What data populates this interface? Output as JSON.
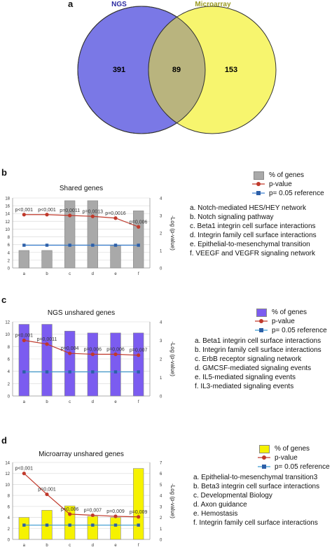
{
  "panel_a": {
    "letter": "a",
    "left_label": "NGS",
    "right_label": "Microarray",
    "left_only": "391",
    "overlap": "89",
    "right_only": "153",
    "left_color": "#7a78e6",
    "right_color": "#f7f56e",
    "overlap_color": "#b9b47e"
  },
  "panels": [
    {
      "letter": "b",
      "pathways": [
        "a.   Notch-mediated HES/HEY network",
        "b.   Notch signaling pathway",
        "c.   Beta1 integrin cell surface interactions",
        "d.   Integrin family cell surface interactions",
        "e.   Epithelial-to-mesenchymal transition",
        "f.   VEEGF and VEGFR signaling network"
      ],
      "legend": [
        "% of genes",
        "p-value",
        "p= 0.05 reference"
      ]
    },
    {
      "letter": "c",
      "pathways": [
        "a.   Beta1 integrin cell surface interactions",
        "b.   Integrin family cell surface interactions",
        "c.   ErbB receptor signaling network",
        "d.   GMCSF-mediated signaling events",
        "e.   IL5-mediated signaling events",
        "f.    IL3-mediated signaling events"
      ],
      "legend": [
        "% of genes",
        "p-value",
        "p= 0.05 reference"
      ]
    },
    {
      "letter": "d",
      "pathways": [
        "a.   Epithelial-to-mesenchymal transition3",
        "b.   Beta3 integrin cell surface interactions",
        "c.   Developmental Biology",
        "d.   Axon guidance",
        "e.   Hemostasis",
        "f.    Integrin family cell surface interactions"
      ],
      "legend": [
        "% of genes",
        "p-value",
        "p= 0.05 reference"
      ]
    }
  ],
  "chart_data": [
    {
      "type": "bar",
      "title": "Shared genes",
      "categories": [
        "a",
        "b",
        "c",
        "d",
        "e",
        "f"
      ],
      "ylim": [
        0,
        18
      ],
      "yticks": [
        0,
        2,
        4,
        6,
        8,
        10,
        12,
        14,
        16,
        18
      ],
      "y2lim": [
        0,
        4
      ],
      "y2ticks": [
        0,
        1,
        2,
        3,
        4
      ],
      "y2label": "-Log (p-value)",
      "bar_values": [
        4.5,
        4.5,
        17.3,
        17.3,
        5.8,
        14.7
      ],
      "pvalue_line": [
        3.05,
        3.05,
        3.0,
        2.95,
        2.85,
        2.35
      ],
      "reference_line": [
        1.3,
        1.3,
        1.3,
        1.3,
        1.3,
        1.3
      ],
      "annotations": [
        "p<0,001",
        "p<0,001",
        "p=0,0011",
        "p=0,0013",
        "p=0,0016",
        "p=0,006"
      ],
      "legend_title_series": [
        "% of genes",
        "p-value",
        "p= 0.05 reference"
      ],
      "bar_color": "#a9a9a9",
      "line_color": "#c0392b",
      "ref_color": "#3a7fd0"
    },
    {
      "type": "bar",
      "title": "NGS unshared genes",
      "categories": [
        "a",
        "b",
        "c",
        "d",
        "e",
        "f"
      ],
      "ylim": [
        0,
        12
      ],
      "yticks": [
        0,
        2,
        4,
        6,
        8,
        10,
        12
      ],
      "ytick_labels": [
        "0",
        "2",
        "4",
        "6",
        "8",
        "10",
        "12"
      ],
      "y2lim": [
        0,
        4
      ],
      "y2ticks": [
        0,
        1,
        2,
        3,
        4
      ],
      "y2label": "-Log (p-value)",
      "bar_values": [
        11.6,
        11.6,
        10.5,
        10.2,
        10.2,
        10.2
      ],
      "pvalue_line": [
        3.0,
        2.8,
        2.3,
        2.25,
        2.25,
        2.2
      ],
      "reference_line": [
        1.3,
        1.3,
        1.3,
        1.3,
        1.3,
        1.3
      ],
      "annotations": [
        "p<0,001",
        "p=0,0011",
        "p=0,004",
        "p=0,006",
        "p=0,006",
        "p=0,007"
      ],
      "bar_color": "#7b5cf0",
      "line_color": "#c0392b",
      "ref_color": "#3a9ad0"
    },
    {
      "type": "bar",
      "title": "Microarray unshared genes",
      "categories": [
        "a",
        "b",
        "c",
        "d",
        "e",
        "f"
      ],
      "ylim": [
        0,
        14
      ],
      "yticks": [
        0,
        2,
        4,
        6,
        8,
        10,
        12,
        14
      ],
      "y2lim": [
        0,
        7
      ],
      "y2ticks": [
        0,
        1,
        2,
        3,
        4,
        5,
        6,
        7
      ],
      "y2label": "-Log (p-value)",
      "bar_values": [
        4.0,
        5.3,
        6.1,
        4.2,
        4.0,
        12.9
      ],
      "pvalue_line": [
        6.0,
        4.1,
        2.3,
        2.2,
        2.1,
        2.05
      ],
      "reference_line": [
        1.3,
        1.3,
        1.3,
        1.3,
        1.3,
        1.3
      ],
      "annotations": [
        "p<0,001",
        "p=0,001",
        "p=0,006",
        "p=0,007",
        "p=0,009",
        "p=0,009"
      ],
      "bar_color": "#f6f200",
      "line_color": "#c0392b",
      "ref_color": "#3a9ad0"
    }
  ]
}
